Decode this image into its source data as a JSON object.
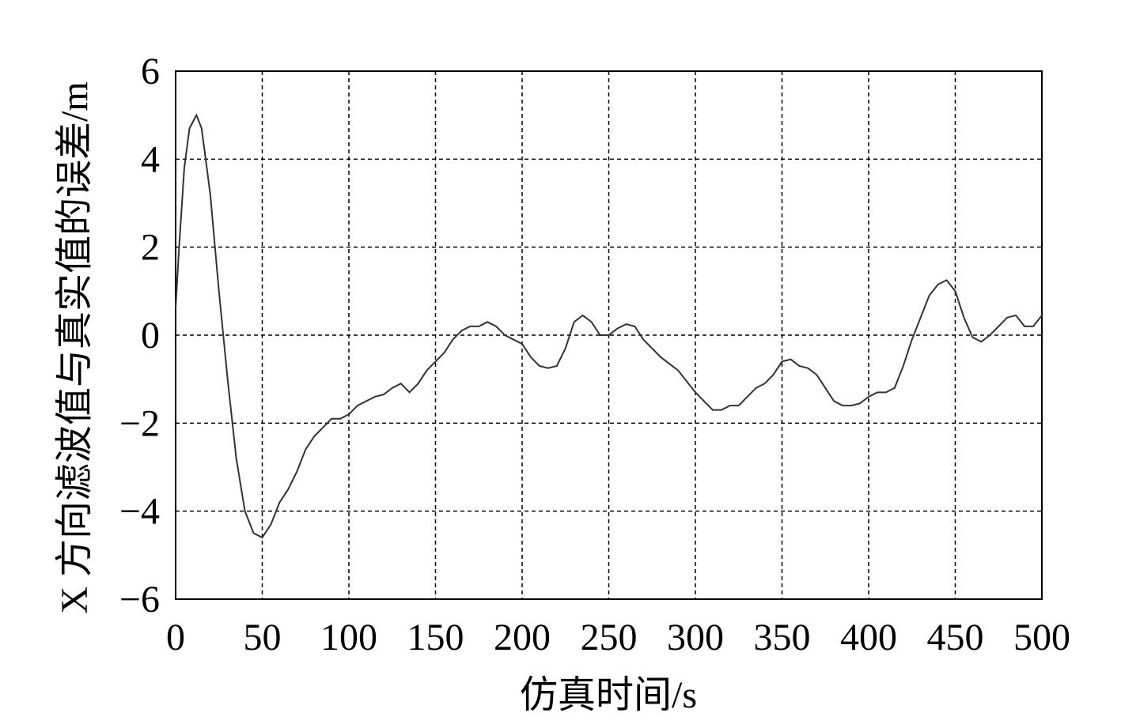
{
  "chart_data": {
    "type": "line",
    "xlabel": "仿真时间/s",
    "ylabel": "X 方向滤波值与真实值的误差/m",
    "x": [
      0,
      2,
      5,
      8,
      12,
      15,
      20,
      25,
      30,
      35,
      40,
      45,
      50,
      55,
      60,
      65,
      70,
      75,
      80,
      85,
      90,
      95,
      100,
      105,
      110,
      115,
      120,
      125,
      130,
      135,
      140,
      145,
      150,
      155,
      160,
      165,
      170,
      175,
      180,
      185,
      190,
      195,
      200,
      205,
      210,
      215,
      220,
      225,
      230,
      235,
      240,
      245,
      250,
      255,
      260,
      265,
      270,
      280,
      290,
      300,
      305,
      310,
      315,
      320,
      325,
      330,
      335,
      340,
      345,
      350,
      355,
      360,
      365,
      370,
      375,
      380,
      385,
      390,
      395,
      400,
      405,
      410,
      415,
      420,
      425,
      430,
      435,
      440,
      445,
      450,
      455,
      460,
      465,
      470,
      475,
      480,
      485,
      490,
      495,
      500
    ],
    "series": [
      {
        "color": "#333333",
        "values": [
          0.6,
          2.0,
          3.8,
          4.7,
          5.0,
          4.7,
          3.2,
          1.0,
          -1.0,
          -2.8,
          -4.0,
          -4.5,
          -4.6,
          -4.3,
          -3.8,
          -3.5,
          -3.1,
          -2.6,
          -2.3,
          -2.1,
          -1.9,
          -1.9,
          -1.8,
          -1.6,
          -1.5,
          -1.4,
          -1.35,
          -1.2,
          -1.1,
          -1.3,
          -1.1,
          -0.8,
          -0.6,
          -0.4,
          -0.1,
          0.1,
          0.2,
          0.2,
          0.3,
          0.2,
          0.0,
          -0.1,
          -0.2,
          -0.5,
          -0.7,
          -0.75,
          -0.7,
          -0.3,
          0.3,
          0.45,
          0.3,
          0.0,
          0.0,
          0.15,
          0.25,
          0.2,
          -0.1,
          -0.5,
          -0.8,
          -1.3,
          -1.5,
          -1.7,
          -1.7,
          -1.6,
          -1.6,
          -1.4,
          -1.2,
          -1.1,
          -0.9,
          -0.6,
          -0.55,
          -0.7,
          -0.75,
          -0.9,
          -1.2,
          -1.5,
          -1.6,
          -1.6,
          -1.55,
          -1.4,
          -1.3,
          -1.3,
          -1.2,
          -0.7,
          -0.1,
          0.4,
          0.9,
          1.15,
          1.25,
          1.0,
          0.4,
          -0.05,
          -0.15,
          0.0,
          0.2,
          0.4,
          0.45,
          0.2,
          0.2,
          0.45
        ]
      }
    ],
    "xlim": [
      0,
      500
    ],
    "xticks": [
      0,
      50,
      100,
      150,
      200,
      250,
      300,
      350,
      400,
      450,
      500
    ],
    "ylim": [
      -6,
      6
    ],
    "yticks": [
      {
        "value": -6,
        "label": "−6"
      },
      {
        "value": -4,
        "label": "−4"
      },
      {
        "value": -2,
        "label": "−2"
      },
      0,
      2,
      4,
      6
    ],
    "grid": true
  }
}
